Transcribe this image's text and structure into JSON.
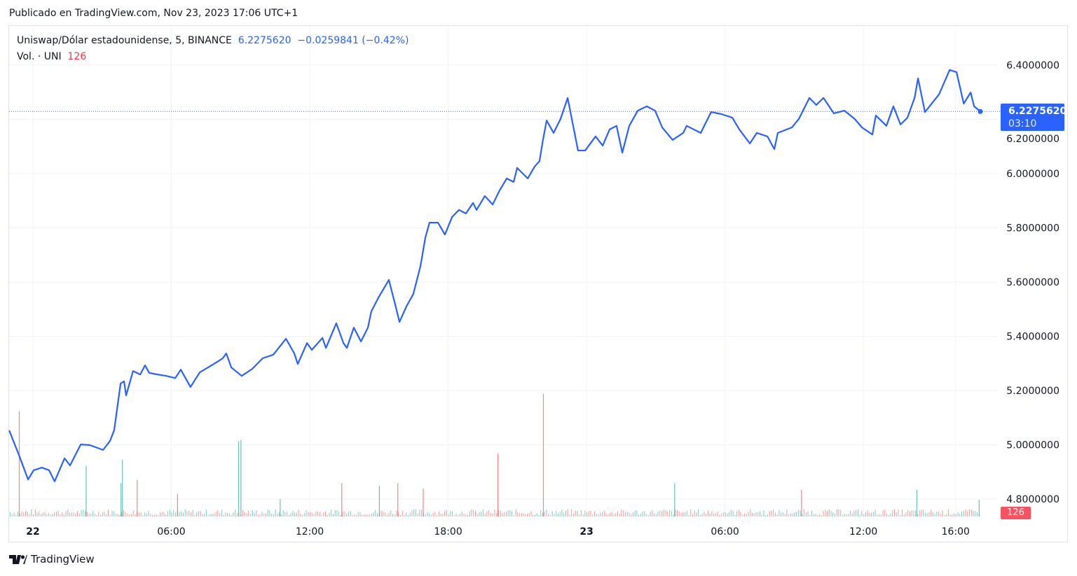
{
  "published": "Publicado en TradingView.com, Nov 23, 2023 17:06 UTC+1",
  "legend": {
    "symbol": "Uniswap/Dólar estadounidense, 5, BINANCE",
    "price": "6.2275620",
    "change": "−0.0259841 (−0.42%)",
    "vol_label": "Vol. · UNI",
    "vol_value": "126"
  },
  "last_price": {
    "price": "6.2275620",
    "countdown": "03:10"
  },
  "brand": "TradingView",
  "colors": {
    "line": "#2962ff",
    "up": "#26a69a",
    "down": "#ef5350",
    "grid": "#f0f3fa"
  },
  "chart_data": {
    "type": "line",
    "title": "Uniswap/Dólar estadounidense, 5, BINANCE",
    "xunit": "hours since Nov 22 00:00",
    "ylim": [
      4.72,
      6.47
    ],
    "xlim": [
      -1.05,
      41.1
    ],
    "y_ticks": [
      "6.4000000",
      "6.2000000",
      "6.0000000",
      "5.8000000",
      "5.6000000",
      "5.4000000",
      "5.2000000",
      "5.0000000",
      "4.8000000"
    ],
    "y_tick_values": [
      6.4,
      6.2,
      6.0,
      5.8,
      5.6,
      5.4,
      5.2,
      5.0,
      4.8
    ],
    "x_ticks": [
      {
        "label": "22",
        "h": 0,
        "bold": true
      },
      {
        "label": "06:00",
        "h": 6
      },
      {
        "label": "12:00",
        "h": 12
      },
      {
        "label": "18:00",
        "h": 18
      },
      {
        "label": "23",
        "h": 24,
        "bold": true
      },
      {
        "label": "06:00",
        "h": 30
      },
      {
        "label": "12:00",
        "h": 36
      },
      {
        "label": "16:00",
        "h": 40
      }
    ],
    "price": [
      [
        -1.03,
        5.053
      ],
      [
        -0.61,
        4.963
      ],
      [
        -0.21,
        4.872
      ],
      [
        0.03,
        4.906
      ],
      [
        0.39,
        4.916
      ],
      [
        0.7,
        4.906
      ],
      [
        0.94,
        4.865
      ],
      [
        1.37,
        4.95
      ],
      [
        1.61,
        4.924
      ],
      [
        2.07,
        5.001
      ],
      [
        2.46,
        4.999
      ],
      [
        3.04,
        4.981
      ],
      [
        3.34,
        5.014
      ],
      [
        3.52,
        5.053
      ],
      [
        3.8,
        5.226
      ],
      [
        3.95,
        5.234
      ],
      [
        4.04,
        5.182
      ],
      [
        4.34,
        5.272
      ],
      [
        4.65,
        5.259
      ],
      [
        4.86,
        5.293
      ],
      [
        5.04,
        5.265
      ],
      [
        5.41,
        5.259
      ],
      [
        5.77,
        5.254
      ],
      [
        6.17,
        5.246
      ],
      [
        6.41,
        5.277
      ],
      [
        6.83,
        5.213
      ],
      [
        7.23,
        5.267
      ],
      [
        7.84,
        5.298
      ],
      [
        8.23,
        5.319
      ],
      [
        8.38,
        5.337
      ],
      [
        8.6,
        5.285
      ],
      [
        9.05,
        5.254
      ],
      [
        9.51,
        5.28
      ],
      [
        9.96,
        5.319
      ],
      [
        10.42,
        5.332
      ],
      [
        10.97,
        5.391
      ],
      [
        11.33,
        5.337
      ],
      [
        11.48,
        5.298
      ],
      [
        11.88,
        5.375
      ],
      [
        12.09,
        5.35
      ],
      [
        12.55,
        5.394
      ],
      [
        12.7,
        5.357
      ],
      [
        13.15,
        5.448
      ],
      [
        13.46,
        5.375
      ],
      [
        13.61,
        5.357
      ],
      [
        13.91,
        5.432
      ],
      [
        14.22,
        5.381
      ],
      [
        14.52,
        5.432
      ],
      [
        14.67,
        5.492
      ],
      [
        14.98,
        5.543
      ],
      [
        15.43,
        5.608
      ],
      [
        15.74,
        5.505
      ],
      [
        15.89,
        5.453
      ],
      [
        16.19,
        5.51
      ],
      [
        16.49,
        5.556
      ],
      [
        16.8,
        5.659
      ],
      [
        17.01,
        5.763
      ],
      [
        17.19,
        5.819
      ],
      [
        17.56,
        5.819
      ],
      [
        17.86,
        5.775
      ],
      [
        18.17,
        5.84
      ],
      [
        18.47,
        5.866
      ],
      [
        18.77,
        5.853
      ],
      [
        19.08,
        5.892
      ],
      [
        19.23,
        5.866
      ],
      [
        19.59,
        5.917
      ],
      [
        19.93,
        5.886
      ],
      [
        20.23,
        5.938
      ],
      [
        20.54,
        5.982
      ],
      [
        20.84,
        5.969
      ],
      [
        20.99,
        6.021
      ],
      [
        21.45,
        5.982
      ],
      [
        21.75,
        6.026
      ],
      [
        21.96,
        6.046
      ],
      [
        22.11,
        6.124
      ],
      [
        22.27,
        6.196
      ],
      [
        22.57,
        6.15
      ],
      [
        22.87,
        6.201
      ],
      [
        23.18,
        6.279
      ],
      [
        23.48,
        6.15
      ],
      [
        23.63,
        6.085
      ],
      [
        23.94,
        6.085
      ],
      [
        24.39,
        6.137
      ],
      [
        24.7,
        6.103
      ],
      [
        25.0,
        6.163
      ],
      [
        25.3,
        6.176
      ],
      [
        25.55,
        6.077
      ],
      [
        25.85,
        6.176
      ],
      [
        26.22,
        6.232
      ],
      [
        26.61,
        6.248
      ],
      [
        26.97,
        6.232
      ],
      [
        27.28,
        6.17
      ],
      [
        27.73,
        6.124
      ],
      [
        28.19,
        6.15
      ],
      [
        28.34,
        6.176
      ],
      [
        28.95,
        6.15
      ],
      [
        29.4,
        6.227
      ],
      [
        29.86,
        6.219
      ],
      [
        30.32,
        6.206
      ],
      [
        30.62,
        6.163
      ],
      [
        31.08,
        6.111
      ],
      [
        31.38,
        6.15
      ],
      [
        31.84,
        6.137
      ],
      [
        32.14,
        6.09
      ],
      [
        32.29,
        6.15
      ],
      [
        32.9,
        6.17
      ],
      [
        33.2,
        6.201
      ],
      [
        33.66,
        6.279
      ],
      [
        33.96,
        6.253
      ],
      [
        34.27,
        6.279
      ],
      [
        34.72,
        6.222
      ],
      [
        35.18,
        6.232
      ],
      [
        35.63,
        6.201
      ],
      [
        35.94,
        6.17
      ],
      [
        36.39,
        6.144
      ],
      [
        36.54,
        6.214
      ],
      [
        37.0,
        6.176
      ],
      [
        37.3,
        6.248
      ],
      [
        37.61,
        6.181
      ],
      [
        37.91,
        6.206
      ],
      [
        38.22,
        6.279
      ],
      [
        38.37,
        6.351
      ],
      [
        38.67,
        6.227
      ],
      [
        39.28,
        6.292
      ],
      [
        39.74,
        6.382
      ],
      [
        40.04,
        6.374
      ],
      [
        40.35,
        6.258
      ],
      [
        40.65,
        6.299
      ],
      [
        40.8,
        6.248
      ],
      [
        41.07,
        6.229
      ]
    ],
    "volume_spikes": [
      [
        -0.61,
        790,
        "down"
      ],
      [
        2.29,
        380,
        "up"
      ],
      [
        3.8,
        250,
        "up"
      ],
      [
        3.86,
        425,
        "up"
      ],
      [
        4.5,
        275,
        "down"
      ],
      [
        6.25,
        170,
        "down"
      ],
      [
        8.9,
        565,
        "up"
      ],
      [
        9.0,
        575,
        "up"
      ],
      [
        10.7,
        130,
        "up"
      ],
      [
        13.37,
        250,
        "down"
      ],
      [
        15.0,
        230,
        "up"
      ],
      [
        15.8,
        250,
        "down"
      ],
      [
        16.9,
        210,
        "down"
      ],
      [
        20.14,
        470,
        "down"
      ],
      [
        22.11,
        920,
        "down"
      ],
      [
        27.8,
        250,
        "up"
      ],
      [
        33.3,
        200,
        "down"
      ],
      [
        38.3,
        200,
        "up"
      ],
      [
        41.0,
        126,
        "up"
      ]
    ]
  }
}
